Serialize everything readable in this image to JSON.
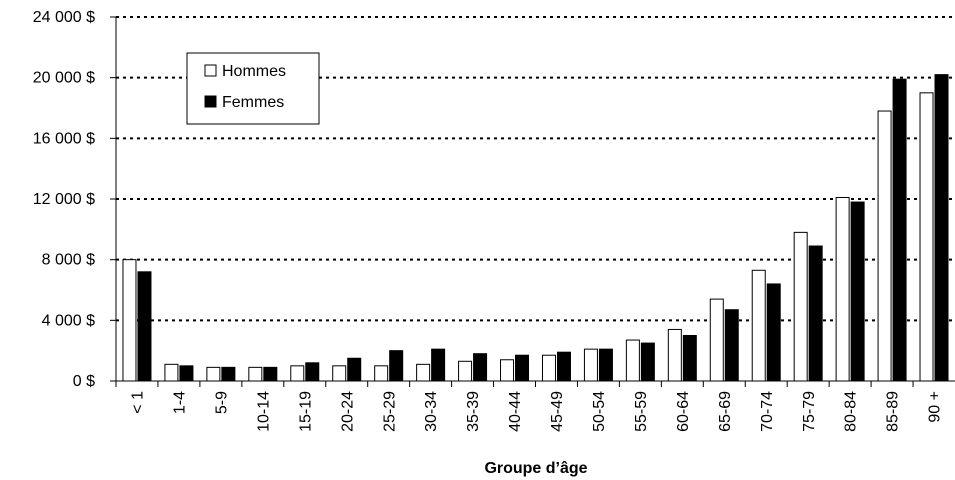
{
  "chart_data": {
    "type": "bar",
    "title": "",
    "xlabel": "Groupe d’âge",
    "ylabel": "",
    "ylim": [
      0,
      24000
    ],
    "y_ticks": [
      {
        "value": 0,
        "label": "0 $"
      },
      {
        "value": 4000,
        "label": "4 000 $"
      },
      {
        "value": 8000,
        "label": "8 000 $"
      },
      {
        "value": 12000,
        "label": "12 000 $"
      },
      {
        "value": 16000,
        "label": "16 000 $"
      },
      {
        "value": 20000,
        "label": "20 000 $"
      },
      {
        "value": 24000,
        "label": "24 000 $"
      }
    ],
    "grid": "horizontal dotted",
    "legend_position": "top-left",
    "categories": [
      "< 1",
      "1-4",
      "5-9",
      "10-14",
      "15-19",
      "20-24",
      "25-29",
      "30-34",
      "35-39",
      "40-44",
      "45-49",
      "50-54",
      "55-59",
      "60-64",
      "65-69",
      "70-74",
      "75-79",
      "80-84",
      "85-89",
      "90 +"
    ],
    "series": [
      {
        "name": "Hommes",
        "color": "#ffffff",
        "values": [
          8000,
          1100,
          900,
          900,
          1000,
          1000,
          1000,
          1100,
          1300,
          1400,
          1700,
          2100,
          2700,
          3400,
          5400,
          7300,
          9800,
          12100,
          17800,
          19000
        ]
      },
      {
        "name": "Femmes",
        "color": "#000000",
        "values": [
          7200,
          1000,
          900,
          900,
          1200,
          1500,
          2000,
          2100,
          1800,
          1700,
          1900,
          2100,
          2500,
          3000,
          4700,
          6400,
          8900,
          11800,
          19900,
          20200
        ]
      }
    ]
  }
}
